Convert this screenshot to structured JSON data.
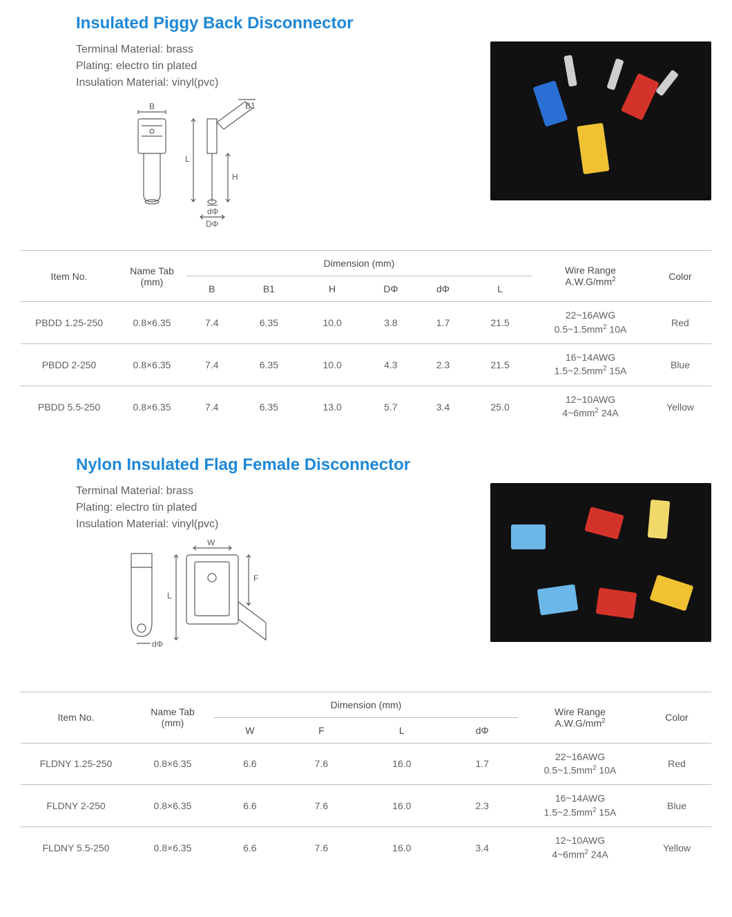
{
  "colors": {
    "title": "#1e88d8",
    "text": "#5f5f5f",
    "border": "#bfbfbf",
    "photo_bg": "#111111",
    "diagram_stroke": "#5a5a5a",
    "red": "#d4332a",
    "blue": "#2a6fd4",
    "yellow": "#f0c233"
  },
  "section1": {
    "title": "Insulated Piggy Back Disconnector",
    "specs": {
      "terminal": "Terminal Material: brass",
      "plating": "Plating: electro tin plated",
      "insulation": "Insulation Material: vinyl(pvc)"
    },
    "diagram_labels": {
      "B": "B",
      "B1": "B1",
      "L": "L",
      "H": "H",
      "d": "dΦ",
      "D": "DΦ"
    },
    "table": {
      "headers": {
        "item": "Item No.",
        "nametab": "Name Tab",
        "nametab_unit": "(mm)",
        "dimension": "Dimension (mm)",
        "wire": "Wire Range",
        "wire_unit": "A.W.G/mm",
        "color": "Color"
      },
      "dim_cols": [
        "B",
        "B1",
        "H",
        "DΦ",
        "dΦ",
        "L"
      ],
      "rows": [
        {
          "item": "PBDD 1.25-250",
          "nametab": "0.8×6.35",
          "dims": [
            "7.4",
            "6.35",
            "10.0",
            "3.8",
            "1.7",
            "21.5"
          ],
          "wire1": "22~16AWG",
          "wire2": "0.5~1.5mm²  10A",
          "color": "Red"
        },
        {
          "item": "PBDD 2-250",
          "nametab": "0.8×6.35",
          "dims": [
            "7.4",
            "6.35",
            "10.0",
            "4.3",
            "2.3",
            "21.5"
          ],
          "wire1": "16~14AWG",
          "wire2": "1.5~2.5mm²  15A",
          "color": "Blue"
        },
        {
          "item": "PBDD 5.5-250",
          "nametab": "0.8×6.35",
          "dims": [
            "7.4",
            "6.35",
            "13.0",
            "5.7",
            "3.4",
            "25.0"
          ],
          "wire1": "12~10AWG",
          "wire2": "4~6mm²  24A",
          "color": "Yellow"
        }
      ]
    }
  },
  "section2": {
    "title": "Nylon Insulated Flag Female Disconnector",
    "specs": {
      "terminal": "Terminal Material: brass",
      "plating": "Plating: electro tin plated",
      "insulation": "Insulation Material: vinyl(pvc)"
    },
    "diagram_labels": {
      "W": "W",
      "F": "F",
      "L": "L",
      "d": "dΦ"
    },
    "table": {
      "headers": {
        "item": "Item No.",
        "nametab": "Name Tab",
        "nametab_unit": "(mm)",
        "dimension": "Dimension (mm)",
        "wire": "Wire Range",
        "wire_unit": "A.W.G/mm",
        "color": "Color"
      },
      "dim_cols": [
        "W",
        "F",
        "L",
        "dΦ"
      ],
      "rows": [
        {
          "item": "FLDNY 1.25-250",
          "nametab": "0.8×6.35",
          "dims": [
            "6.6",
            "7.6",
            "16.0",
            "1.7"
          ],
          "wire1": "22~16AWG",
          "wire2": "0.5~1.5mm²  10A",
          "color": "Red"
        },
        {
          "item": "FLDNY 2-250",
          "nametab": "0.8×6.35",
          "dims": [
            "6.6",
            "7.6",
            "16.0",
            "2.3"
          ],
          "wire1": "16~14AWG",
          "wire2": "1.5~2.5mm²  15A",
          "color": "Blue"
        },
        {
          "item": "FLDNY 5.5-250",
          "nametab": "0.8×6.35",
          "dims": [
            "6.6",
            "7.6",
            "16.0",
            "3.4"
          ],
          "wire1": "12~10AWG",
          "wire2": "4~6mm²  24A",
          "color": "Yellow"
        }
      ]
    }
  }
}
